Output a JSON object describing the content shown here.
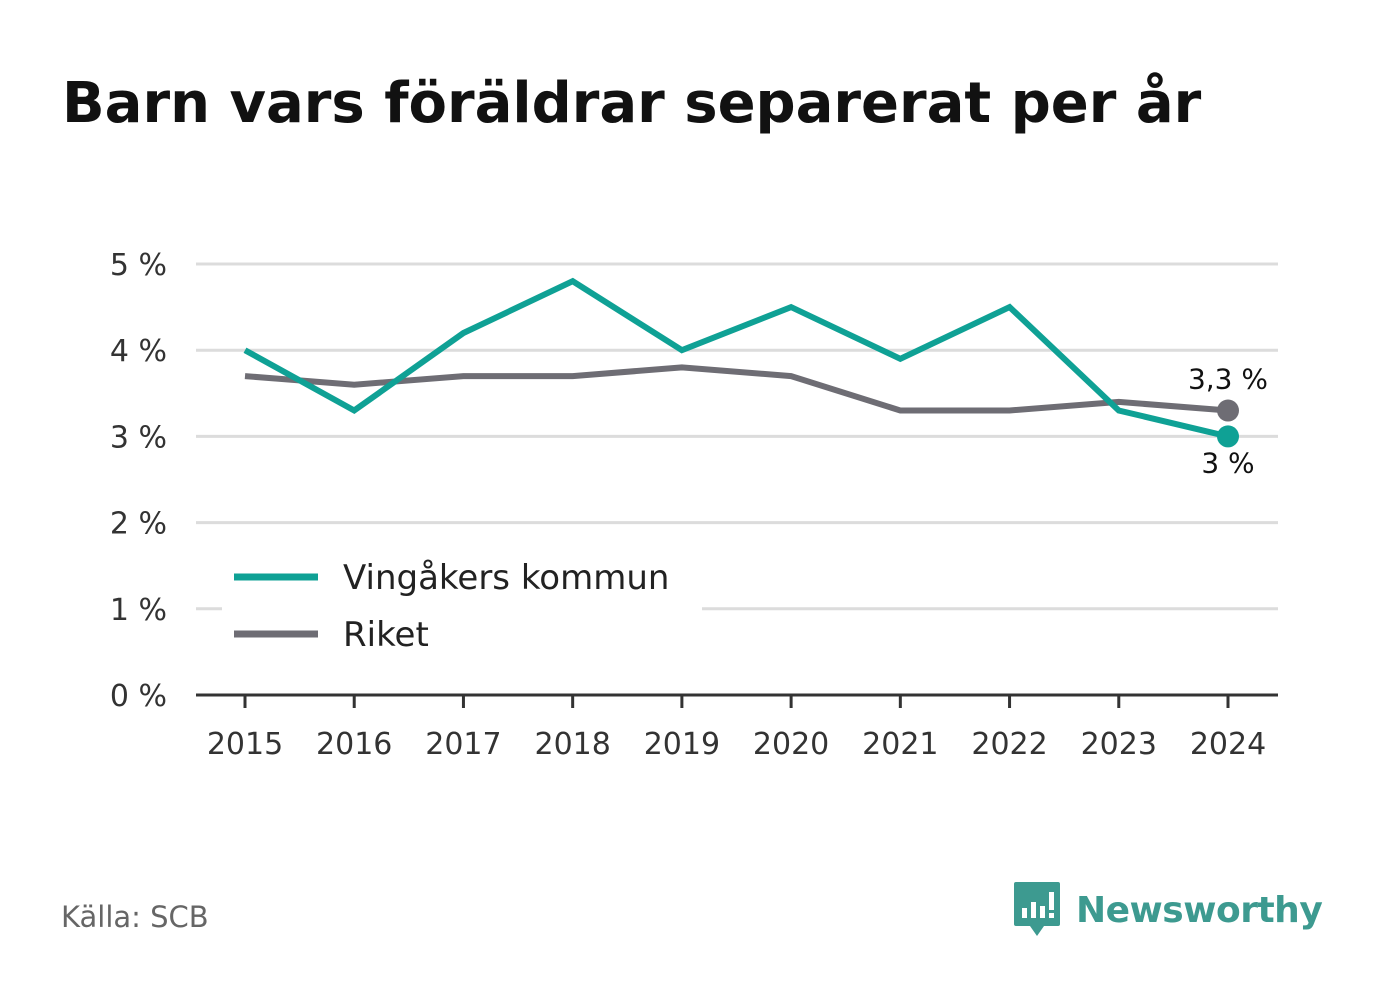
{
  "page": {
    "title": "Barn vars föräldrar separerat per år",
    "source": "Källa: SCB",
    "brand": "Newsworthy",
    "brand_color": "#3d9a90"
  },
  "chart_data": {
    "type": "line",
    "title": "Barn vars föräldrar separerat per år",
    "xlabel": "",
    "ylabel": "",
    "x": [
      "2015",
      "2016",
      "2017",
      "2018",
      "2019",
      "2020",
      "2021",
      "2022",
      "2023",
      "2024"
    ],
    "ylim": [
      0,
      5
    ],
    "yticks": [
      0,
      1,
      2,
      3,
      4,
      5
    ],
    "ytick_labels": [
      "0 %",
      "1 %",
      "2 %",
      "3 %",
      "4 %",
      "5 %"
    ],
    "grid": "horizontal",
    "legend_position": "bottom-left",
    "series": [
      {
        "name": "Vingåkers kommun",
        "color": "#0fa195",
        "values": [
          4.0,
          3.3,
          4.2,
          4.8,
          4.0,
          4.5,
          3.9,
          4.5,
          3.3,
          3.0
        ],
        "end_label": "3 %",
        "end_label_side": "below"
      },
      {
        "name": "Riket",
        "color": "#6e6d74",
        "values": [
          3.7,
          3.6,
          3.7,
          3.7,
          3.8,
          3.7,
          3.3,
          3.3,
          3.4,
          3.3
        ],
        "end_label": "3,3 %",
        "end_label_side": "above"
      }
    ]
  }
}
